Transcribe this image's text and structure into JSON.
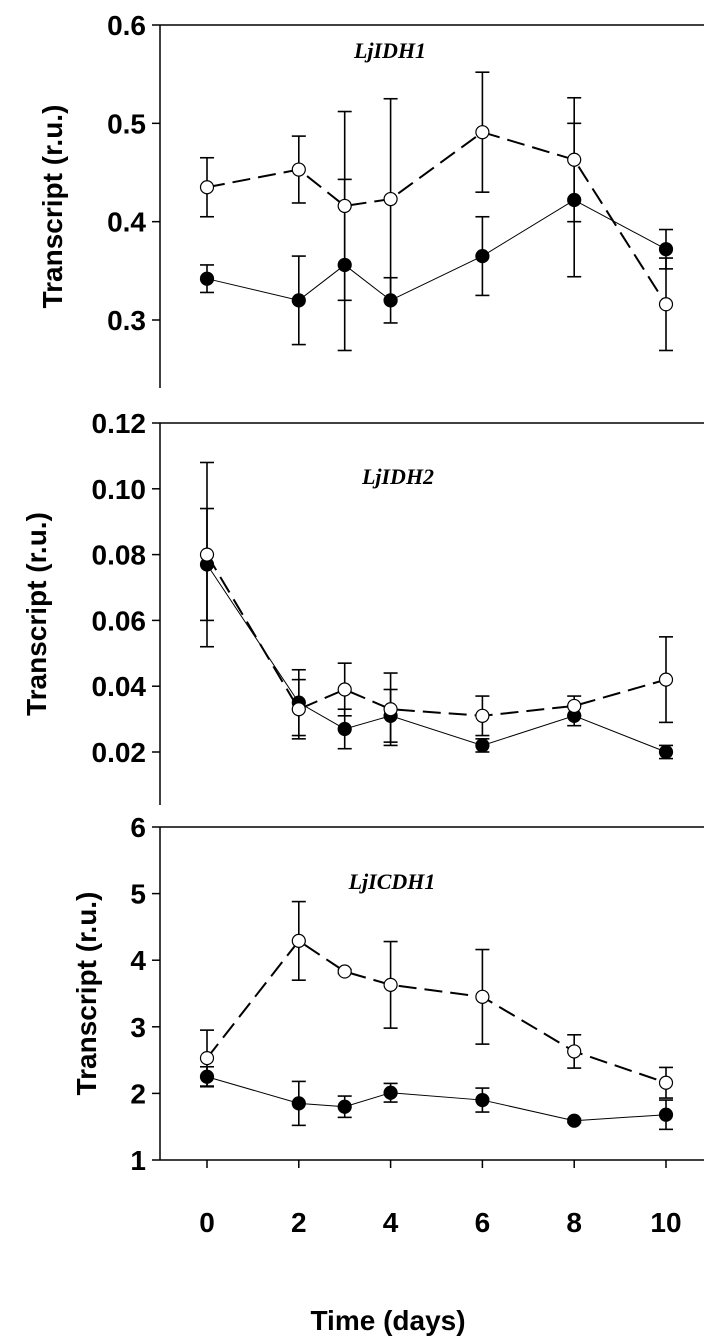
{
  "chart_data": [
    {
      "type": "line",
      "title": "LjIDH1",
      "ylabel": "Transcript (r.u.)",
      "xlabel": "",
      "ylim": [
        0.25,
        0.6
      ],
      "yticks": [
        0.3,
        0.4,
        0.5,
        0.6
      ],
      "ytick_labels": [
        "0.3",
        "0.4",
        "0.5",
        "0.6"
      ],
      "x": [
        0,
        2,
        3,
        4,
        6,
        8,
        10
      ],
      "series": [
        {
          "marker": "filled",
          "linestyle": "solid",
          "values": [
            0.342,
            0.32,
            0.356,
            0.32,
            0.365,
            0.422,
            0.372
          ],
          "errors": [
            0.014,
            0.045,
            0.087,
            0.023,
            0.04,
            0.078,
            0.02
          ]
        },
        {
          "marker": "open",
          "linestyle": "dashed",
          "values": [
            0.435,
            0.453,
            0.416,
            0.423,
            0.491,
            0.463,
            0.316
          ],
          "errors": [
            0.03,
            0.034,
            0.096,
            0.102,
            0.061,
            0.063,
            0.047
          ]
        }
      ]
    },
    {
      "type": "line",
      "title": "LjIDH2",
      "ylabel": "Transcript (r.u.)",
      "xlabel": "",
      "ylim": [
        0.01,
        0.12
      ],
      "yticks": [
        0.02,
        0.04,
        0.06,
        0.08,
        0.1,
        0.12
      ],
      "ytick_labels": [
        "0.02",
        "0.04",
        "0.06",
        "0.08",
        "0.10",
        "0.12"
      ],
      "x": [
        0,
        2,
        3,
        4,
        6,
        8,
        10
      ],
      "series": [
        {
          "marker": "filled",
          "linestyle": "solid",
          "values": [
            0.077,
            0.035,
            0.027,
            0.031,
            0.022,
            0.031,
            0.02
          ],
          "errors": [
            0.017,
            0.01,
            0.006,
            0.008,
            0.002,
            0.003,
            0.002
          ]
        },
        {
          "marker": "open",
          "linestyle": "dashed",
          "values": [
            0.08,
            0.033,
            0.039,
            0.033,
            0.031,
            0.034,
            0.042
          ],
          "errors": [
            0.028,
            0.009,
            0.008,
            0.011,
            0.006,
            0.003,
            0.013
          ]
        }
      ]
    },
    {
      "type": "line",
      "title": "LjICDH1",
      "ylabel": "Transcript (r.u.)",
      "xlabel": "Time (days)",
      "ylim": [
        1,
        6
      ],
      "yticks": [
        1,
        2,
        3,
        4,
        5,
        6
      ],
      "ytick_labels": [
        "1",
        "2",
        "3",
        "4",
        "5",
        "6"
      ],
      "xticks": [
        0,
        2,
        4,
        6,
        8,
        10
      ],
      "xtick_labels": [
        "0",
        "2",
        "4",
        "6",
        "8",
        "10"
      ],
      "x": [
        0,
        2,
        3,
        4,
        6,
        8,
        10
      ],
      "series": [
        {
          "marker": "filled",
          "linestyle": "solid",
          "values": [
            2.25,
            1.85,
            1.8,
            2.01,
            1.9,
            1.59,
            1.68
          ],
          "errors": [
            0.15,
            0.33,
            0.16,
            0.14,
            0.18,
            0.03,
            0.22
          ]
        },
        {
          "marker": "open",
          "linestyle": "dashed",
          "values": [
            2.53,
            4.29,
            3.83,
            3.63,
            3.45,
            2.63,
            2.16
          ],
          "errors": [
            0.42,
            0.59,
            0.03,
            0.65,
            0.71,
            0.25,
            0.23
          ]
        }
      ]
    }
  ]
}
